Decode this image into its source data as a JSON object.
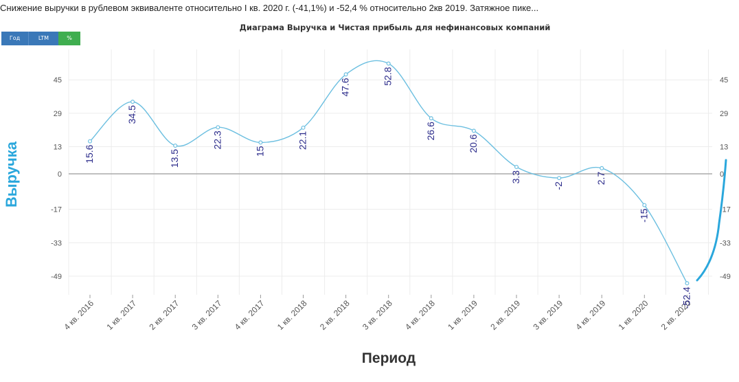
{
  "headline": "Снижение выручки в рублевом эквиваленте относительно I кв. 2020 г. (-41,1%) и -52,4 % относительно 2кв 2019. Затяжное пике...",
  "toolbar": {
    "buttons": [
      {
        "label": "Год"
      },
      {
        "label": "LTM"
      },
      {
        "label": "%"
      }
    ]
  },
  "colors": {
    "line": "#6cbfe0",
    "labels": "#2a2a8a",
    "zero_line": "#aaaaaa",
    "grid": "#ececec",
    "ylabel": "#2aa7dc",
    "button_blue": "#3a78b8",
    "button_green": "#3fae4f",
    "annotation": "#2aa7dc"
  },
  "chart_data": {
    "type": "line",
    "title": "Диаграма Выручка и Чистая прибыль для нефинансовых компаний",
    "xlabel": "Период",
    "ylabel": "Выручка",
    "categories": [
      "4 кв. 2016",
      "1 кв. 2017",
      "2 кв. 2017",
      "3 кв. 2017",
      "4 кв. 2017",
      "1 кв. 2018",
      "2 кв. 2018",
      "3 кв. 2018",
      "4 кв. 2018",
      "1 кв. 2019",
      "2 кв. 2019",
      "3 кв. 2019",
      "4 кв. 2019",
      "1 кв. 2020",
      "2 кв. 2020"
    ],
    "series": [
      {
        "values": [
          15.6,
          34.5,
          13.5,
          22.3,
          15,
          22.1,
          47.6,
          52.8,
          26.6,
          20.6,
          3.3,
          -2,
          2.7,
          -15,
          -52.4
        ],
        "labels": [
          "15.6",
          "34.5",
          "13.5",
          "22.3",
          "15",
          "22.1",
          "47.6",
          "52.8",
          "26.6",
          "20.6",
          "3.3",
          "-2",
          "2.7",
          "-15",
          "-52.4"
        ]
      }
    ],
    "yticks": [
      "45",
      "29",
      "13",
      "0",
      "-17",
      "-33",
      "-49"
    ],
    "ytick_values": [
      45,
      29,
      13,
      0,
      -17,
      -33,
      -49
    ],
    "yaxis_right": true,
    "grid": true,
    "annotation": "hand-drawn stroke from the last point upward"
  }
}
